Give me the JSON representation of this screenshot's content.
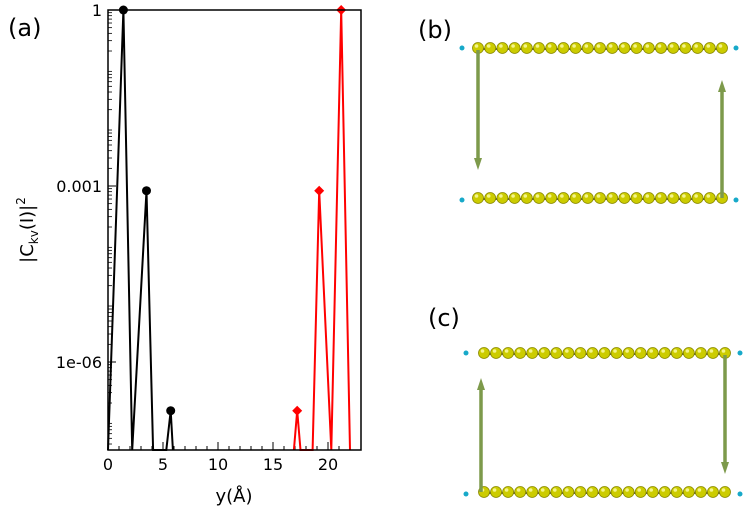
{
  "panel_labels": {
    "a": "(a)",
    "b": "(b)",
    "c": "(c)"
  },
  "chart_data": {
    "type": "line",
    "xlabel": "y(Å)",
    "ylabel": "|C_kv(I)|^2",
    "ylabel_parts": {
      "base": "|C",
      "sub": "kv",
      "arg": "(I)|",
      "sup": "2"
    },
    "xlim": [
      0,
      23
    ],
    "ylim_log10": [
      -7.5,
      0
    ],
    "y_scale": "log",
    "x_ticks": [
      0,
      5,
      10,
      15,
      20
    ],
    "x_tick_labels": [
      "0",
      "5",
      "10",
      "15",
      "20"
    ],
    "y_ticks_log10": [
      0,
      -3,
      -6
    ],
    "y_tick_labels": [
      "1",
      "0.001",
      "1e-06"
    ],
    "series": [
      {
        "color": "#000000",
        "marker": "circle",
        "x": [
          0.0,
          1.4,
          2.2,
          3.5,
          4.1,
          5.3,
          5.7,
          5.9
        ],
        "y_log10": [
          -7.5,
          0.0,
          -7.5,
          -3.08,
          -7.5,
          -7.5,
          -6.83,
          -7.5
        ],
        "markers": [
          {
            "x": 1.4,
            "y_log10": 0.0
          },
          {
            "x": 3.5,
            "y_log10": -3.08
          },
          {
            "x": 5.7,
            "y_log10": -6.83
          }
        ]
      },
      {
        "color": "#ff0000",
        "marker": "diamond",
        "x": [
          16.9,
          17.2,
          17.5,
          18.6,
          19.2,
          20.3,
          21.2,
          22.0
        ],
        "y_log10": [
          -7.5,
          -6.83,
          -7.5,
          -7.5,
          -3.08,
          -7.5,
          0.0,
          -7.5
        ],
        "markers": [
          {
            "x": 17.2,
            "y_log10": -6.83
          },
          {
            "x": 19.2,
            "y_log10": -3.08
          },
          {
            "x": 21.2,
            "y_log10": 0.0
          }
        ]
      }
    ]
  },
  "structures": {
    "atom_color": "#cccc00",
    "atom_count": 21,
    "bond_color": "#555555",
    "end_atom_color": "#17a9c9",
    "arrow_color": "#7d9a4b"
  }
}
